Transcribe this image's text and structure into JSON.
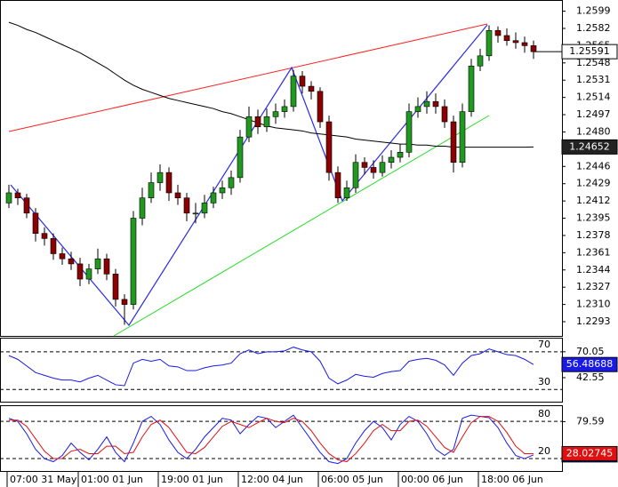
{
  "chart_data": [
    {
      "type": "candlestick",
      "categories": [
        "07:00 31 May",
        null,
        null,
        null,
        null,
        null,
        null,
        null,
        "01:00 01 Jun",
        null,
        null,
        null,
        null,
        null,
        null,
        null,
        null,
        "19:00 01 Jun",
        null,
        null,
        null,
        null,
        null,
        null,
        null,
        null,
        "12:00 04 Jun",
        null,
        null,
        null,
        null,
        null,
        null,
        null,
        null,
        "06:00 05 Jun",
        null,
        null,
        null,
        null,
        null,
        null,
        null,
        null,
        "00:00 06 Jun",
        null,
        null,
        null,
        null,
        null,
        null,
        null,
        null,
        "18:00 06 Jun",
        null,
        null,
        null,
        null,
        null,
        null
      ],
      "open": [
        1.241,
        1.242,
        1.2415,
        1.24,
        1.238,
        1.2375,
        1.236,
        1.2355,
        1.235,
        1.2335,
        1.2345,
        1.2355,
        1.234,
        1.2315,
        1.231,
        1.2395,
        1.2415,
        1.243,
        1.244,
        1.242,
        1.2415,
        1.24,
        1.24,
        1.241,
        1.242,
        1.2425,
        1.2435,
        1.2475,
        1.2495,
        1.2485,
        1.2495,
        1.25,
        1.2505,
        1.2535,
        1.2525,
        1.252,
        1.249,
        1.244,
        1.2415,
        1.2425,
        1.245,
        1.2445,
        1.244,
        1.245,
        1.2455,
        1.246,
        1.25,
        1.2505,
        1.251,
        1.2505,
        1.249,
        1.245,
        1.25,
        1.2545,
        1.2555,
        1.258,
        1.2575,
        1.257,
        1.2568,
        1.2565
      ],
      "high": [
        1.2428,
        1.2424,
        1.2419,
        1.2405,
        1.2386,
        1.238,
        1.2366,
        1.2362,
        1.2356,
        1.235,
        1.2365,
        1.236,
        1.2345,
        1.232,
        1.2402,
        1.2425,
        1.244,
        1.2448,
        1.2445,
        1.2428,
        1.242,
        1.241,
        1.2418,
        1.2426,
        1.2432,
        1.2442,
        1.2482,
        1.2505,
        1.2502,
        1.2503,
        1.2508,
        1.2512,
        1.2541,
        1.254,
        1.253,
        1.2524,
        1.2496,
        1.2446,
        1.2432,
        1.2458,
        1.2455,
        1.2452,
        1.2457,
        1.2462,
        1.2468,
        1.2508,
        1.2514,
        1.252,
        1.2518,
        1.2512,
        1.2496,
        1.2508,
        1.2552,
        1.2562,
        1.2585,
        1.2584,
        1.2582,
        1.2578,
        1.2574,
        1.257
      ],
      "low": [
        1.2405,
        1.2408,
        1.2395,
        1.2372,
        1.2368,
        1.2354,
        1.2349,
        1.2344,
        1.2328,
        1.233,
        1.234,
        1.2334,
        1.2308,
        1.229,
        1.2305,
        1.2388,
        1.241,
        1.2422,
        1.2412,
        1.2408,
        1.2392,
        1.239,
        1.2395,
        1.2405,
        1.2414,
        1.2418,
        1.243,
        1.247,
        1.2478,
        1.248,
        1.2488,
        1.2494,
        1.25,
        1.2518,
        1.2512,
        1.2484,
        1.2432,
        1.241,
        1.2412,
        1.242,
        1.2438,
        1.2434,
        1.2436,
        1.2444,
        1.245,
        1.2455,
        1.2494,
        1.2498,
        1.2498,
        1.2484,
        1.244,
        1.2445,
        1.2495,
        1.254,
        1.255,
        1.2568,
        1.2565,
        1.2562,
        1.2558,
        1.2552
      ],
      "close": [
        1.242,
        1.2415,
        1.24,
        1.238,
        1.2375,
        1.236,
        1.2355,
        1.235,
        1.2335,
        1.2345,
        1.2355,
        1.234,
        1.2315,
        1.231,
        1.2395,
        1.2415,
        1.243,
        1.244,
        1.242,
        1.2415,
        1.24,
        1.24,
        1.241,
        1.242,
        1.2425,
        1.2435,
        1.2475,
        1.2495,
        1.2485,
        1.2495,
        1.25,
        1.2505,
        1.2535,
        1.2525,
        1.252,
        1.249,
        1.244,
        1.2415,
        1.2425,
        1.245,
        1.2445,
        1.244,
        1.245,
        1.2455,
        1.246,
        1.25,
        1.2505,
        1.251,
        1.2505,
        1.249,
        1.245,
        1.25,
        1.2545,
        1.2555,
        1.258,
        1.2575,
        1.257,
        1.2568,
        1.2565,
        1.25591
      ],
      "color_up": "#1f9a1f",
      "color_down": "#8b0000",
      "series": [
        {
          "color": "#000000",
          "values": [
            1.2588,
            1.2585,
            1.2581,
            1.2578,
            1.2574,
            1.257,
            1.2566,
            1.2562,
            1.2558,
            1.2553,
            1.2548,
            1.2543,
            1.2537,
            1.2531,
            1.2526,
            1.2522,
            1.2519,
            1.2516,
            1.2513,
            1.2511,
            1.2509,
            1.2507,
            1.2505,
            1.2503,
            1.25,
            1.2498,
            1.2495,
            1.2492,
            1.2489,
            1.2486,
            1.2484,
            1.2483,
            1.2482,
            1.2481,
            1.2479,
            1.2478,
            1.2477,
            1.2476,
            1.2475,
            1.2473,
            1.2472,
            1.2471,
            1.247,
            1.2469,
            1.2468,
            1.2468,
            1.2467,
            1.2467,
            1.2466,
            1.2466,
            1.2465,
            1.2465,
            1.2465,
            1.2465,
            1.2465,
            1.2465,
            1.2465,
            1.2465,
            1.2465,
            1.24652
          ]
        }
      ],
      "ylim": [
        1.2279,
        1.261
      ],
      "yticks": [
        1.2599,
        1.2582,
        1.2565,
        1.2548,
        1.2531,
        1.2514,
        1.2497,
        {
          "value": 1.248,
          "label": "1.2480"
        },
        1.2446,
        1.2429,
        1.2412,
        1.2395,
        1.2378,
        1.2361,
        1.2344,
        1.2327,
        {
          "value": 1.231,
          "label": "1.2310"
        },
        1.2293
      ]
    },
    {
      "type": "line",
      "series": [
        {
          "color": "#1a1ae6",
          "values": [
            66,
            62,
            55,
            48,
            45,
            42,
            40,
            40,
            38,
            42,
            45,
            40,
            35,
            34,
            58,
            62,
            60,
            62,
            55,
            54,
            50,
            50,
            53,
            55,
            56,
            58,
            68,
            72,
            68,
            70,
            70,
            71,
            75,
            72,
            70,
            60,
            42,
            36,
            40,
            46,
            44,
            43,
            47,
            49,
            50,
            60,
            62,
            63,
            61,
            56,
            45,
            58,
            66,
            68,
            73,
            70,
            67,
            66,
            62,
            56.48688
          ]
        }
      ],
      "ylim": [
        17,
        85
      ],
      "yticks": [
        70.05,
        42.55
      ],
      "levels": [
        70,
        30
      ]
    },
    {
      "type": "line",
      "series": [
        {
          "color": "#1a1ae6",
          "values": [
            85,
            80,
            60,
            35,
            20,
            15,
            25,
            45,
            30,
            18,
            35,
            55,
            30,
            15,
            45,
            80,
            88,
            75,
            50,
            30,
            20,
            35,
            55,
            70,
            85,
            82,
            60,
            75,
            88,
            85,
            70,
            80,
            90,
            70,
            50,
            30,
            15,
            12,
            20,
            45,
            65,
            80,
            70,
            50,
            75,
            88,
            80,
            60,
            35,
            25,
            35,
            85,
            90,
            88,
            86,
            70,
            45,
            25,
            20,
            26
          ]
        },
        {
          "color": "#e01010",
          "values": [
            82,
            82,
            72,
            52,
            32,
            20,
            20,
            32,
            35,
            28,
            28,
            40,
            40,
            28,
            30,
            55,
            75,
            82,
            70,
            50,
            30,
            28,
            38,
            55,
            72,
            80,
            75,
            70,
            78,
            85,
            80,
            78,
            85,
            80,
            65,
            45,
            28,
            18,
            15,
            28,
            45,
            65,
            75,
            65,
            65,
            80,
            82,
            72,
            55,
            38,
            30,
            55,
            78,
            88,
            88,
            80,
            62,
            40,
            28,
            28.02745
          ]
        }
      ],
      "ylim": [
        0,
        106
      ],
      "yticks": [
        79.59
      ],
      "levels": [
        80,
        20
      ]
    }
  ]
}
